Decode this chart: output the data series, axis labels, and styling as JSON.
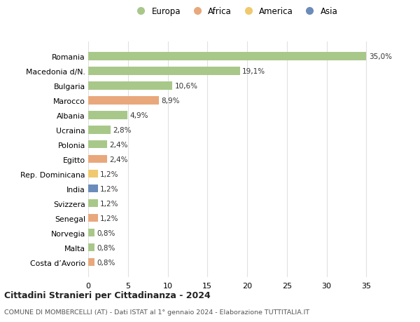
{
  "countries": [
    "Romania",
    "Macedonia d/N.",
    "Bulgaria",
    "Marocco",
    "Albania",
    "Ucraina",
    "Polonia",
    "Egitto",
    "Rep. Dominicana",
    "India",
    "Svizzera",
    "Senegal",
    "Norvegia",
    "Malta",
    "Costa d’Avorio"
  ],
  "values": [
    35.0,
    19.1,
    10.6,
    8.9,
    4.9,
    2.8,
    2.4,
    2.4,
    1.2,
    1.2,
    1.2,
    1.2,
    0.8,
    0.8,
    0.8
  ],
  "labels": [
    "35,0%",
    "19,1%",
    "10,6%",
    "8,9%",
    "4,9%",
    "2,8%",
    "2,4%",
    "2,4%",
    "1,2%",
    "1,2%",
    "1,2%",
    "1,2%",
    "0,8%",
    "0,8%",
    "0,8%"
  ],
  "continents": [
    "Europa",
    "Europa",
    "Europa",
    "Africa",
    "Europa",
    "Europa",
    "Europa",
    "Africa",
    "America",
    "Asia",
    "Europa",
    "Africa",
    "Europa",
    "Europa",
    "Africa"
  ],
  "continent_colors": {
    "Europa": "#a8c88a",
    "Africa": "#e8a87c",
    "America": "#f0c96e",
    "Asia": "#6b8cba"
  },
  "legend_order": [
    "Europa",
    "Africa",
    "America",
    "Asia"
  ],
  "xlim": [
    0,
    37
  ],
  "xticks": [
    0,
    5,
    10,
    15,
    20,
    25,
    30,
    35
  ],
  "title": "Cittadini Stranieri per Cittadinanza - 2024",
  "subtitle": "COMUNE DI MOMBERCELLI (AT) - Dati ISTAT al 1° gennaio 2024 - Elaborazione TUTTITALIA.IT",
  "background_color": "#ffffff",
  "grid_color": "#e0e0e0",
  "bar_height": 0.55
}
